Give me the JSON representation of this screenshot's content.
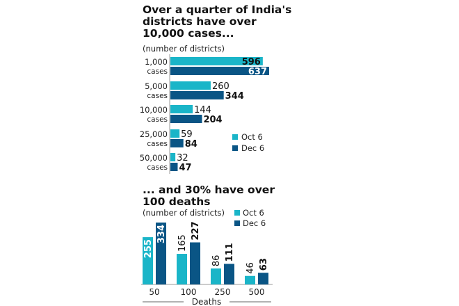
{
  "colors": {
    "oct": "#1ab5c8",
    "dec": "#0a5585",
    "text": "#111111",
    "axis": "#777777"
  },
  "chart_data": [
    {
      "type": "bar",
      "orientation": "horizontal",
      "title": "Over a quarter of India's districts have over 10,000 cases...",
      "title_lines": [
        "Over a quarter of India's",
        "districts have over",
        "10,000 cases..."
      ],
      "subtitle": "(number of districts)",
      "categories": [
        {
          "line1": "1,000",
          "line2": "cases"
        },
        {
          "line1": "5,000",
          "line2": "cases"
        },
        {
          "line1": "10,000",
          "line2": "cases"
        },
        {
          "line1": "25,000",
          "line2": "cases"
        },
        {
          "line1": "50,000",
          "line2": "cases"
        }
      ],
      "series": [
        {
          "name": "Oct 6",
          "values": [
            596,
            260,
            144,
            59,
            32
          ]
        },
        {
          "name": "Dec 6",
          "values": [
            637,
            344,
            204,
            84,
            47
          ]
        }
      ],
      "legend": {
        "position": "right",
        "items": [
          "Oct 6",
          "Dec 6"
        ]
      },
      "xlim": [
        0,
        637
      ],
      "grid": false
    },
    {
      "type": "bar",
      "orientation": "vertical",
      "title": "... and 30% have over 100 deaths",
      "title_lines": [
        "... and 30% have over",
        "100 deaths"
      ],
      "subtitle": "(number of districts)",
      "categories": [
        "50",
        "100",
        "250",
        "500"
      ],
      "xlabel": "Deaths",
      "series": [
        {
          "name": "Oct 6",
          "values": [
            255,
            165,
            86,
            46
          ]
        },
        {
          "name": "Dec 6",
          "values": [
            334,
            227,
            111,
            63
          ]
        }
      ],
      "legend": {
        "position": "top-right",
        "items": [
          "Oct 6",
          "Dec 6"
        ]
      },
      "ylim": [
        0,
        334
      ],
      "grid": false
    }
  ]
}
